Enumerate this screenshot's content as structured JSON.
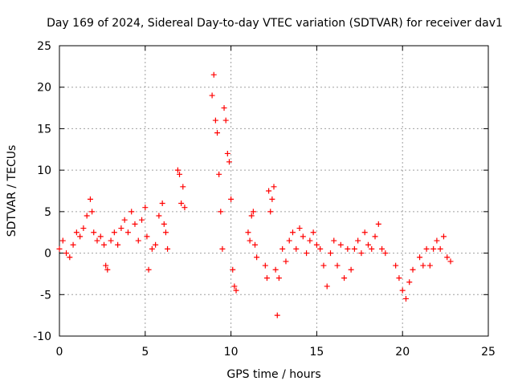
{
  "chart_data": {
    "type": "scatter",
    "title": "Day 169 of 2024, Sidereal Day-to-day VTEC variation (SDTVAR) for receiver dav1",
    "xlabel": "GPS time / hours",
    "ylabel": "SDTVAR / TECUs",
    "xlim": [
      0,
      25
    ],
    "ylim": [
      -10,
      25
    ],
    "xticks": [
      0,
      5,
      10,
      15,
      20,
      25
    ],
    "yticks": [
      -10,
      -5,
      0,
      5,
      10,
      15,
      20,
      25
    ],
    "x_tick_labels": [
      "0",
      "5",
      "10",
      "15",
      "20",
      "25"
    ],
    "y_tick_labels": [
      "-10",
      "-5",
      "0",
      "5",
      "10",
      "15",
      "20",
      "25"
    ],
    "grid": true,
    "marker": "+",
    "marker_color": "#ff0000",
    "series": [
      {
        "name": "SDTVAR",
        "x": [
          0.0,
          0.2,
          0.4,
          0.6,
          0.8,
          1.0,
          1.2,
          1.4,
          1.6,
          1.8,
          1.9,
          2.0,
          2.2,
          2.4,
          2.6,
          2.7,
          2.8,
          3.0,
          3.2,
          3.4,
          3.6,
          3.8,
          4.0,
          4.2,
          4.4,
          4.6,
          4.8,
          5.0,
          5.1,
          5.2,
          5.4,
          5.6,
          5.8,
          6.0,
          6.1,
          6.2,
          6.3,
          6.9,
          7.0,
          7.1,
          7.2,
          7.3,
          8.9,
          9.0,
          9.1,
          9.2,
          9.3,
          9.4,
          9.5,
          9.6,
          9.7,
          9.8,
          9.9,
          10.0,
          10.1,
          10.2,
          10.3,
          11.0,
          11.1,
          11.2,
          11.3,
          11.4,
          11.5,
          12.0,
          12.1,
          12.2,
          12.3,
          12.4,
          12.5,
          12.6,
          12.7,
          12.8,
          13.0,
          13.2,
          13.4,
          13.6,
          13.8,
          14.0,
          14.2,
          14.4,
          14.6,
          14.8,
          15.0,
          15.2,
          15.4,
          15.6,
          15.8,
          16.0,
          16.2,
          16.4,
          16.6,
          16.8,
          17.0,
          17.2,
          17.4,
          17.6,
          17.8,
          18.0,
          18.2,
          18.4,
          18.6,
          18.8,
          19.0,
          19.6,
          19.8,
          20.0,
          20.2,
          20.4,
          20.6,
          21.0,
          21.2,
          21.4,
          21.6,
          21.8,
          22.0,
          22.2,
          22.4,
          22.6,
          22.8
        ],
        "y": [
          0.5,
          1.5,
          0.0,
          -0.5,
          1.0,
          2.5,
          2.0,
          3.0,
          4.5,
          6.5,
          5.0,
          2.5,
          1.5,
          2.0,
          1.0,
          -1.5,
          -2.0,
          1.5,
          2.5,
          1.0,
          3.0,
          4.0,
          2.5,
          5.0,
          3.5,
          1.5,
          4.0,
          5.5,
          2.0,
          -2.0,
          0.5,
          1.0,
          4.5,
          6.0,
          3.5,
          2.5,
          0.5,
          10.0,
          9.5,
          6.0,
          8.0,
          5.5,
          19.0,
          21.5,
          16.0,
          14.5,
          9.5,
          5.0,
          0.5,
          17.5,
          16.0,
          12.0,
          11.0,
          6.5,
          -2.0,
          -4.0,
          -4.5,
          2.5,
          1.5,
          4.5,
          5.0,
          1.0,
          -0.5,
          -1.5,
          -3.0,
          7.5,
          5.0,
          6.5,
          8.0,
          -2.0,
          -7.5,
          -3.0,
          0.5,
          -1.0,
          1.5,
          2.5,
          0.5,
          3.0,
          2.0,
          0.0,
          1.5,
          2.5,
          1.0,
          0.5,
          -1.5,
          -4.0,
          0.0,
          1.5,
          -1.5,
          1.0,
          -3.0,
          0.5,
          -2.0,
          0.5,
          1.5,
          0.0,
          2.5,
          1.0,
          0.5,
          2.0,
          3.5,
          0.5,
          0.0,
          -1.5,
          -3.0,
          -4.5,
          -5.5,
          -3.5,
          -2.0,
          -0.5,
          -1.5,
          0.5,
          -1.5,
          0.5,
          1.5,
          0.5,
          2.0,
          -0.5,
          -1.0
        ]
      }
    ]
  }
}
